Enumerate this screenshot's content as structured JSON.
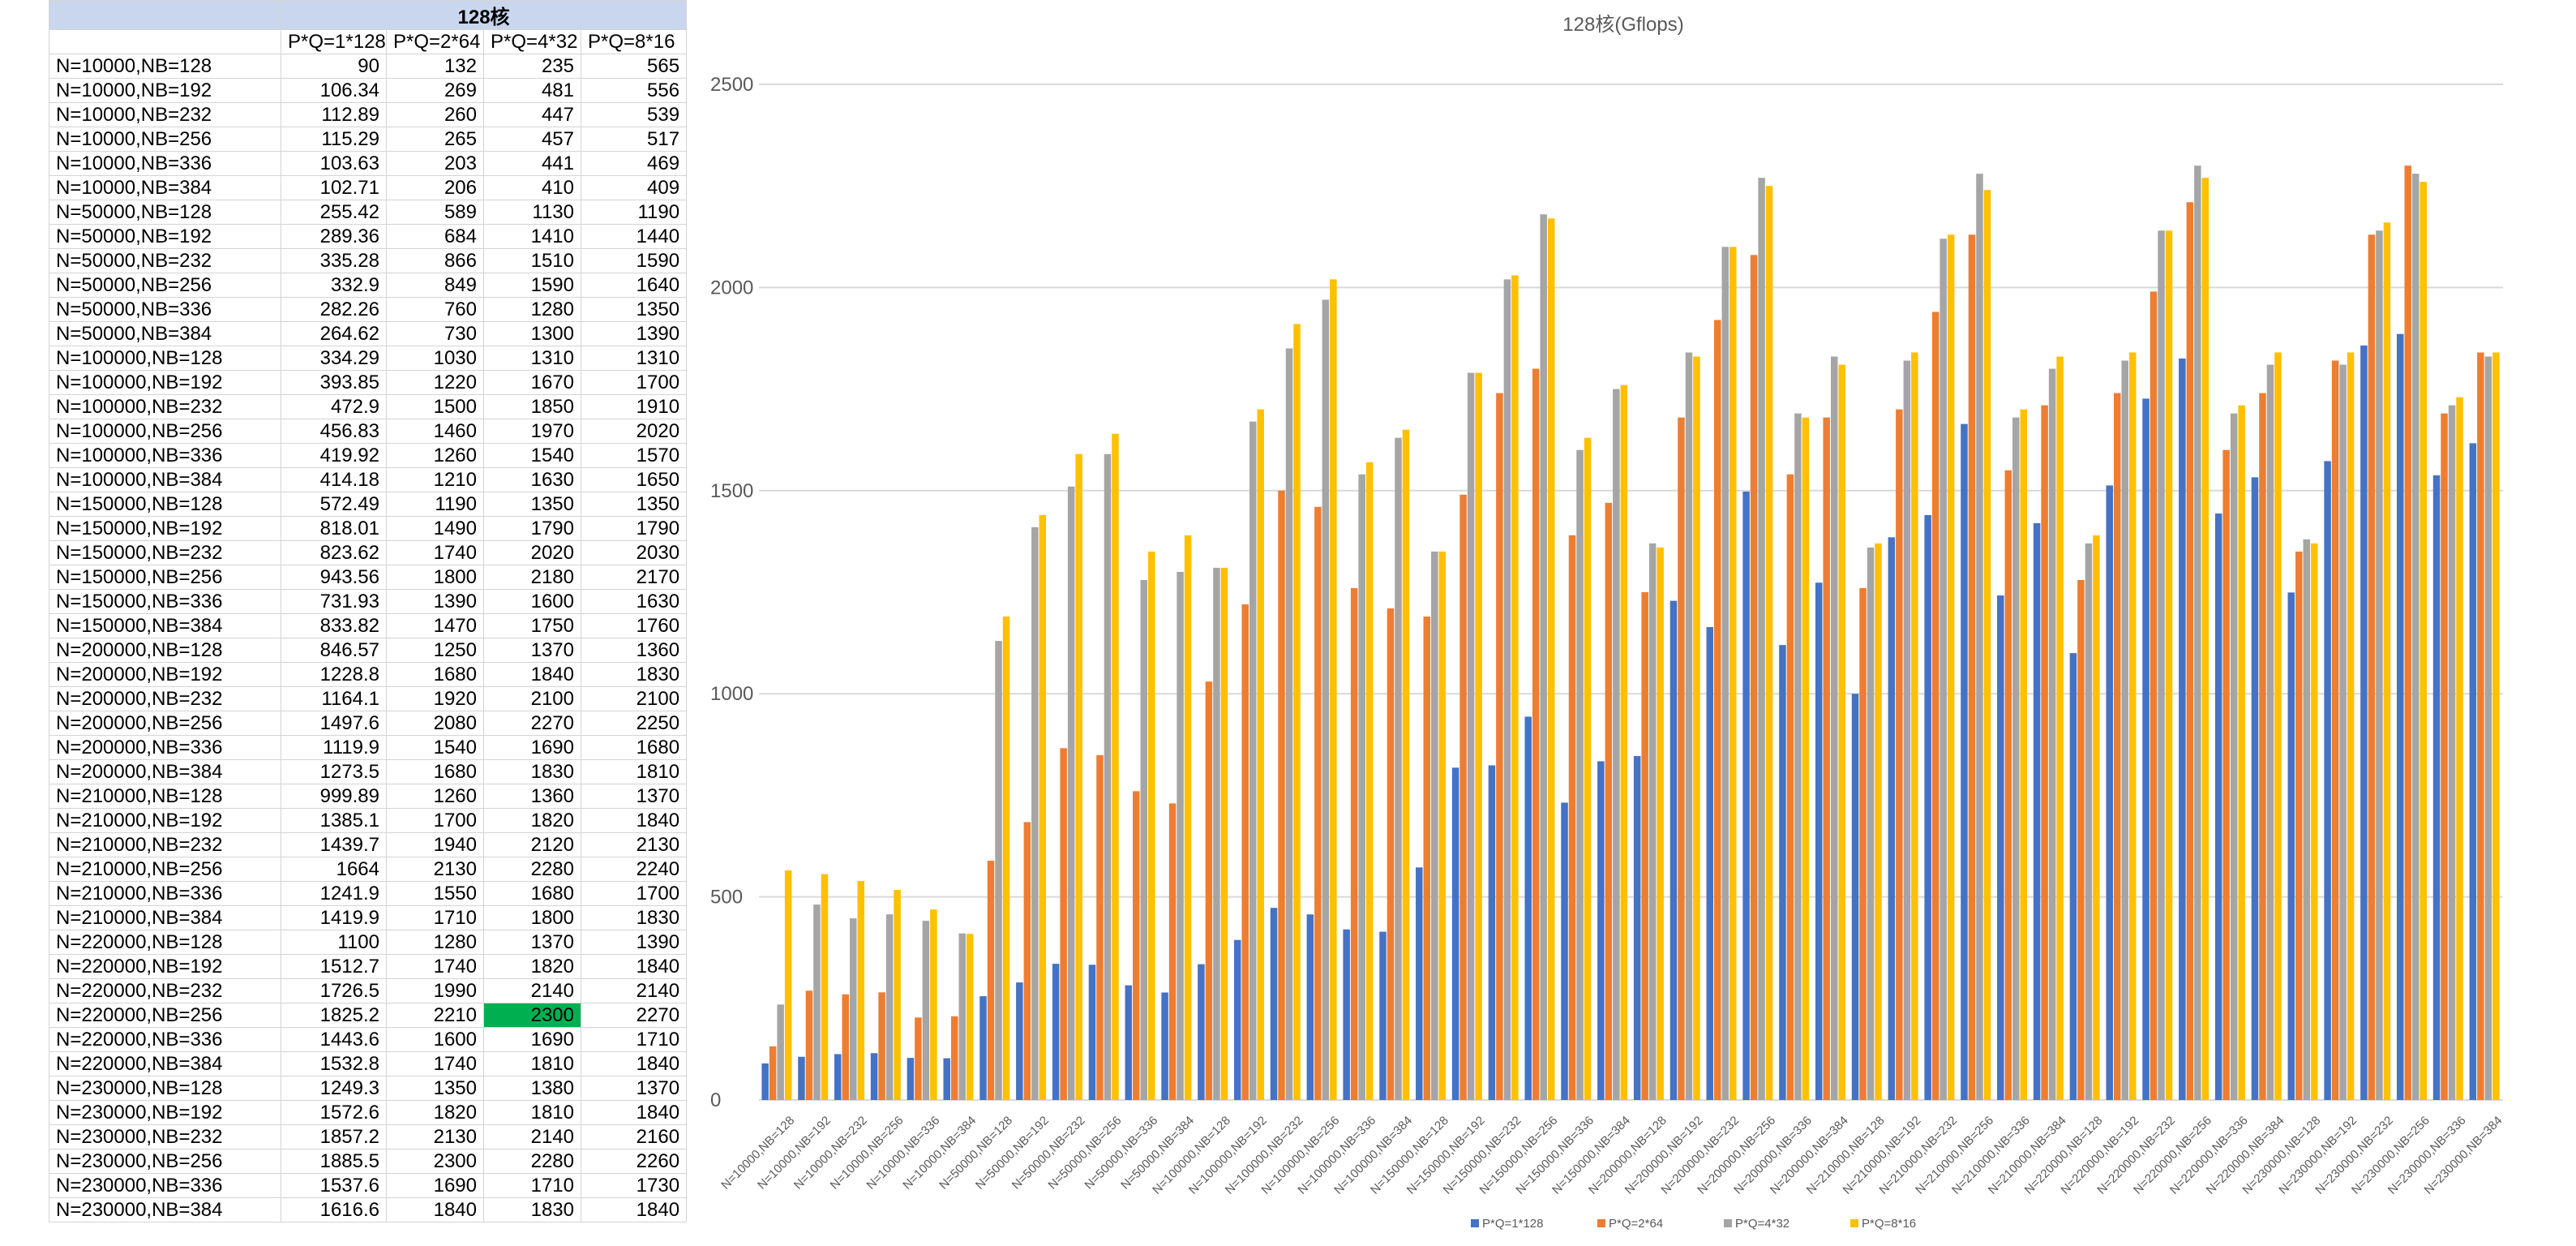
{
  "table": {
    "title": "128核",
    "headers": [
      "P*Q=1*128",
      "P*Q=2*64",
      "P*Q=4*32",
      "P*Q=8*16"
    ],
    "highlight_color": "#00b050"
  },
  "chart_data": {
    "type": "bar",
    "title": "128核(Gflops)",
    "xlabel": "",
    "ylabel": "",
    "ylim": [
      0,
      2500
    ],
    "yticks": [
      0,
      500,
      1000,
      1500,
      2000,
      2500
    ],
    "grid": true,
    "legend": "bottom",
    "categories": [
      "N=10000,NB=128",
      "N=10000,NB=192",
      "N=10000,NB=232",
      "N=10000,NB=256",
      "N=10000,NB=336",
      "N=10000,NB=384",
      "N=50000,NB=128",
      "N=50000,NB=192",
      "N=50000,NB=232",
      "N=50000,NB=256",
      "N=50000,NB=336",
      "N=50000,NB=384",
      "N=100000,NB=128",
      "N=100000,NB=192",
      "N=100000,NB=232",
      "N=100000,NB=256",
      "N=100000,NB=336",
      "N=100000,NB=384",
      "N=150000,NB=128",
      "N=150000,NB=192",
      "N=150000,NB=232",
      "N=150000,NB=256",
      "N=150000,NB=336",
      "N=150000,NB=384",
      "N=200000,NB=128",
      "N=200000,NB=192",
      "N=200000,NB=232",
      "N=200000,NB=256",
      "N=200000,NB=336",
      "N=200000,NB=384",
      "N=210000,NB=128",
      "N=210000,NB=192",
      "N=210000,NB=232",
      "N=210000,NB=256",
      "N=210000,NB=336",
      "N=210000,NB=384",
      "N=220000,NB=128",
      "N=220000,NB=192",
      "N=220000,NB=232",
      "N=220000,NB=256",
      "N=220000,NB=336",
      "N=220000,NB=384",
      "N=230000,NB=128",
      "N=230000,NB=192",
      "N=230000,NB=232",
      "N=230000,NB=256",
      "N=230000,NB=336",
      "N=230000,NB=384"
    ],
    "series": [
      {
        "name": "P*Q=1*128",
        "color": "#4472c4",
        "values": [
          "90",
          "106.34",
          "112.89",
          "115.29",
          "103.63",
          "102.71",
          "255.42",
          "289.36",
          "335.28",
          "332.9",
          "282.26",
          "264.62",
          "334.29",
          "393.85",
          "472.9",
          "456.83",
          "419.92",
          "414.18",
          "572.49",
          "818.01",
          "823.62",
          "943.56",
          "731.93",
          "833.82",
          "846.57",
          "1228.8",
          "1164.1",
          "1497.6",
          "1119.9",
          "1273.5",
          "999.89",
          "1385.1",
          "1439.7",
          "1664",
          "1241.9",
          "1419.9",
          "1100",
          "1512.7",
          "1726.5",
          "1825.2",
          "1443.6",
          "1532.8",
          "1249.3",
          "1572.6",
          "1857.2",
          "1885.5",
          "1537.6",
          "1616.6"
        ]
      },
      {
        "name": "P*Q=2*64",
        "color": "#ed7d31",
        "values": [
          "132",
          "269",
          "260",
          "265",
          "203",
          "206",
          "589",
          "684",
          "866",
          "849",
          "760",
          "730",
          "1030",
          "1220",
          "1500",
          "1460",
          "1260",
          "1210",
          "1190",
          "1490",
          "1740",
          "1800",
          "1390",
          "1470",
          "1250",
          "1680",
          "1920",
          "2080",
          "1540",
          "1680",
          "1260",
          "1700",
          "1940",
          "2130",
          "1550",
          "1710",
          "1280",
          "1740",
          "1990",
          "2210",
          "1600",
          "1740",
          "1350",
          "1820",
          "2130",
          "2300",
          "1690",
          "1840"
        ]
      },
      {
        "name": "P*Q=4*32",
        "color": "#a5a5a5",
        "values": [
          "235",
          "481",
          "447",
          "457",
          "441",
          "410",
          "1130",
          "1410",
          "1510",
          "1590",
          "1280",
          "1300",
          "1310",
          "1670",
          "1850",
          "1970",
          "1540",
          "1630",
          "1350",
          "1790",
          "2020",
          "2180",
          "1600",
          "1750",
          "1370",
          "1840",
          "2100",
          "2270",
          "1690",
          "1830",
          "1360",
          "1820",
          "2120",
          "2280",
          "1680",
          "1800",
          "1370",
          "1820",
          "2140",
          "2300",
          "1690",
          "1810",
          "1380",
          "1810",
          "2140",
          "2280",
          "1710",
          "1830"
        ]
      },
      {
        "name": "P*Q=8*16",
        "color": "#ffc000",
        "values": [
          "565",
          "556",
          "539",
          "517",
          "469",
          "409",
          "1190",
          "1440",
          "1590",
          "1640",
          "1350",
          "1390",
          "1310",
          "1700",
          "1910",
          "2020",
          "1570",
          "1650",
          "1350",
          "1790",
          "2030",
          "2170",
          "1630",
          "1760",
          "1360",
          "1830",
          "2100",
          "2250",
          "1680",
          "1810",
          "1370",
          "1840",
          "2130",
          "2240",
          "1700",
          "1830",
          "1390",
          "1840",
          "2140",
          "2270",
          "1710",
          "1840",
          "1370",
          "1840",
          "2160",
          "2260",
          "1730",
          "1840"
        ]
      }
    ]
  }
}
